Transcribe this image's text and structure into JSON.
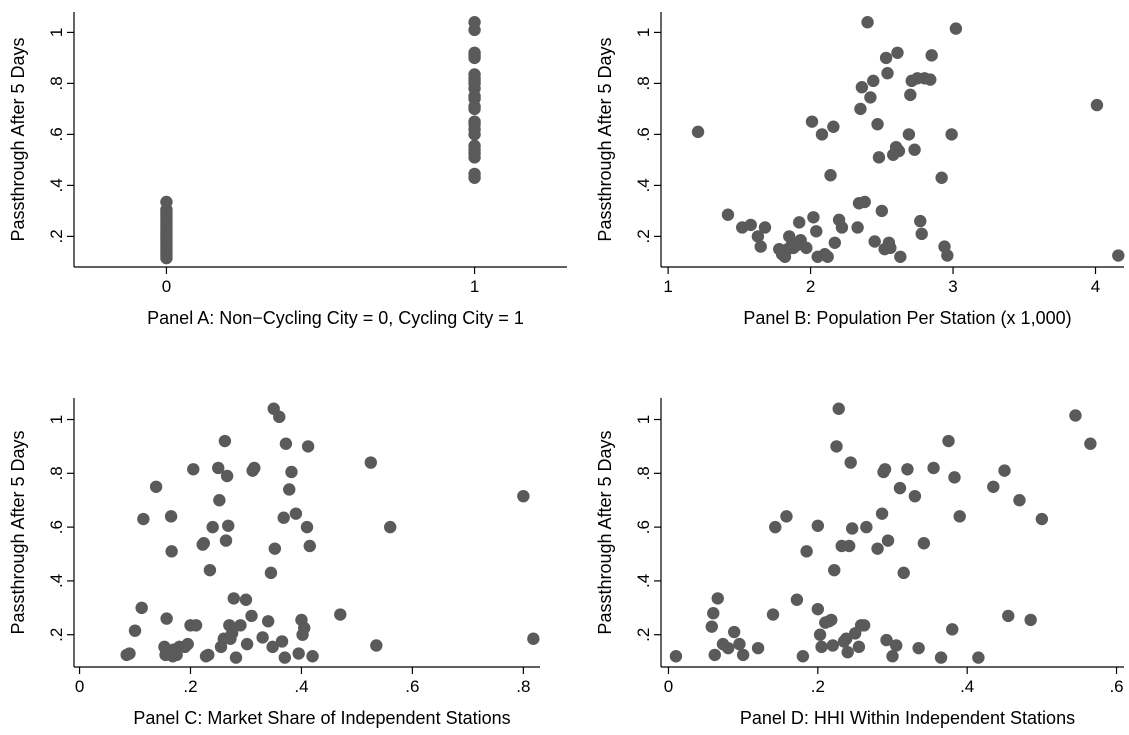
{
  "chart_data": [
    {
      "type": "scatter",
      "panel": "A",
      "xlabel": "Panel A: Non−Cycling City = 0, Cycling City = 1",
      "ylabel": "Passthrough After 5 Days",
      "xlim": [
        -0.3,
        1.3
      ],
      "ylim": [
        0.08,
        1.08
      ],
      "xticks": [
        0,
        1
      ],
      "xtick_labels": [
        "0",
        "1"
      ],
      "yticks": [
        0.2,
        0.4,
        0.6,
        0.8,
        1
      ],
      "ytick_labels": [
        ".2",
        ".4",
        ".6",
        ".8",
        "1"
      ],
      "grid": false,
      "marker_color": "#5a5a5a",
      "points": [
        [
          0,
          0.115
        ],
        [
          0,
          0.125
        ],
        [
          0,
          0.135
        ],
        [
          0,
          0.145
        ],
        [
          0,
          0.155
        ],
        [
          0,
          0.165
        ],
        [
          0,
          0.175
        ],
        [
          0,
          0.185
        ],
        [
          0,
          0.195
        ],
        [
          0,
          0.205
        ],
        [
          0,
          0.215
        ],
        [
          0,
          0.225
        ],
        [
          0,
          0.235
        ],
        [
          0,
          0.245
        ],
        [
          0,
          0.255
        ],
        [
          0,
          0.265
        ],
        [
          0,
          0.275
        ],
        [
          0,
          0.285
        ],
        [
          0,
          0.295
        ],
        [
          0,
          0.305
        ],
        [
          0,
          0.335
        ],
        [
          1,
          0.43
        ],
        [
          1,
          0.445
        ],
        [
          1,
          0.51
        ],
        [
          1,
          0.525
        ],
        [
          1,
          0.54
        ],
        [
          1,
          0.555
        ],
        [
          1,
          0.6
        ],
        [
          1,
          0.62
        ],
        [
          1,
          0.64
        ],
        [
          1,
          0.65
        ],
        [
          1,
          0.7
        ],
        [
          1,
          0.71
        ],
        [
          1,
          0.74
        ],
        [
          1,
          0.75
        ],
        [
          1,
          0.78
        ],
        [
          1,
          0.8
        ],
        [
          1,
          0.81
        ],
        [
          1,
          0.82
        ],
        [
          1,
          0.835
        ],
        [
          1,
          0.9
        ],
        [
          1,
          0.91
        ],
        [
          1,
          0.92
        ],
        [
          1,
          1.01
        ],
        [
          1,
          1.04
        ]
      ]
    },
    {
      "type": "scatter",
      "panel": "B",
      "xlabel": "Panel B: Population Per Station (x 1,000)",
      "ylabel": "Passthrough After 5 Days",
      "xlim": [
        0.95,
        4.2
      ],
      "ylim": [
        0.08,
        1.08
      ],
      "xticks": [
        1,
        2,
        3,
        4
      ],
      "xtick_labels": [
        "1",
        "2",
        "3",
        "4"
      ],
      "yticks": [
        0.2,
        0.4,
        0.6,
        0.8,
        1
      ],
      "ytick_labels": [
        ".2",
        ".4",
        ".6",
        ".8",
        "1"
      ],
      "grid": false,
      "marker_color": "#5a5a5a",
      "points": [
        [
          1.21,
          0.61
        ],
        [
          1.42,
          0.285
        ],
        [
          1.52,
          0.235
        ],
        [
          1.58,
          0.245
        ],
        [
          1.63,
          0.2
        ],
        [
          1.65,
          0.16
        ],
        [
          1.68,
          0.235
        ],
        [
          1.78,
          0.15
        ],
        [
          1.8,
          0.13
        ],
        [
          1.82,
          0.12
        ],
        [
          1.84,
          0.15
        ],
        [
          1.85,
          0.2
        ],
        [
          1.87,
          0.17
        ],
        [
          1.88,
          0.155
        ],
        [
          1.9,
          0.165
        ],
        [
          1.92,
          0.255
        ],
        [
          1.93,
          0.185
        ],
        [
          1.97,
          0.155
        ],
        [
          2.01,
          0.65
        ],
        [
          2.02,
          0.275
        ],
        [
          2.04,
          0.22
        ],
        [
          2.05,
          0.12
        ],
        [
          2.08,
          0.6
        ],
        [
          2.1,
          0.13
        ],
        [
          2.12,
          0.12
        ],
        [
          2.14,
          0.44
        ],
        [
          2.16,
          0.63
        ],
        [
          2.17,
          0.175
        ],
        [
          2.2,
          0.265
        ],
        [
          2.22,
          0.235
        ],
        [
          2.33,
          0.235
        ],
        [
          2.34,
          0.33
        ],
        [
          2.35,
          0.7
        ],
        [
          2.36,
          0.785
        ],
        [
          2.38,
          0.335
        ],
        [
          2.4,
          1.04
        ],
        [
          2.42,
          0.745
        ],
        [
          2.44,
          0.81
        ],
        [
          2.45,
          0.18
        ],
        [
          2.47,
          0.64
        ],
        [
          2.48,
          0.51
        ],
        [
          2.5,
          0.3
        ],
        [
          2.52,
          0.15
        ],
        [
          2.53,
          0.9
        ],
        [
          2.54,
          0.84
        ],
        [
          2.55,
          0.175
        ],
        [
          2.56,
          0.155
        ],
        [
          2.58,
          0.52
        ],
        [
          2.6,
          0.55
        ],
        [
          2.61,
          0.92
        ],
        [
          2.62,
          0.535
        ],
        [
          2.63,
          0.12
        ],
        [
          2.69,
          0.6
        ],
        [
          2.7,
          0.755
        ],
        [
          2.71,
          0.81
        ],
        [
          2.73,
          0.54
        ],
        [
          2.75,
          0.82
        ],
        [
          2.77,
          0.26
        ],
        [
          2.78,
          0.21
        ],
        [
          2.8,
          0.82
        ],
        [
          2.84,
          0.815
        ],
        [
          2.85,
          0.91
        ],
        [
          2.92,
          0.43
        ],
        [
          2.94,
          0.16
        ],
        [
          2.96,
          0.125
        ],
        [
          2.99,
          0.6
        ],
        [
          3.02,
          1.015
        ],
        [
          4.01,
          0.715
        ],
        [
          4.16,
          0.125
        ]
      ]
    },
    {
      "type": "scatter",
      "panel": "C",
      "xlabel": "Panel C: Market Share of Independent Stations",
      "ylabel": "Passthrough After 5 Days",
      "xlim": [
        -0.01,
        0.83
      ],
      "ylim": [
        0.08,
        1.08
      ],
      "xticks": [
        0,
        0.2,
        0.4,
        0.6,
        0.8
      ],
      "xtick_labels": [
        "0",
        ".2",
        ".4",
        ".6",
        ".8"
      ],
      "yticks": [
        0.2,
        0.4,
        0.6,
        0.8,
        1
      ],
      "ytick_labels": [
        ".2",
        ".4",
        ".6",
        ".8",
        "1"
      ],
      "grid": false,
      "marker_color": "#5a5a5a",
      "points": [
        [
          0.085,
          0.125
        ],
        [
          0.09,
          0.13
        ],
        [
          0.1,
          0.215
        ],
        [
          0.112,
          0.3
        ],
        [
          0.115,
          0.63
        ],
        [
          0.138,
          0.75
        ],
        [
          0.153,
          0.155
        ],
        [
          0.155,
          0.125
        ],
        [
          0.157,
          0.26
        ],
        [
          0.165,
          0.64
        ],
        [
          0.166,
          0.51
        ],
        [
          0.168,
          0.12
        ],
        [
          0.17,
          0.145
        ],
        [
          0.175,
          0.125
        ],
        [
          0.18,
          0.155
        ],
        [
          0.19,
          0.155
        ],
        [
          0.195,
          0.165
        ],
        [
          0.2,
          0.235
        ],
        [
          0.205,
          0.815
        ],
        [
          0.21,
          0.235
        ],
        [
          0.222,
          0.535
        ],
        [
          0.224,
          0.54
        ],
        [
          0.228,
          0.12
        ],
        [
          0.232,
          0.125
        ],
        [
          0.235,
          0.44
        ],
        [
          0.24,
          0.6
        ],
        [
          0.25,
          0.82
        ],
        [
          0.252,
          0.7
        ],
        [
          0.255,
          0.155
        ],
        [
          0.26,
          0.185
        ],
        [
          0.262,
          0.92
        ],
        [
          0.264,
          0.55
        ],
        [
          0.266,
          0.79
        ],
        [
          0.268,
          0.605
        ],
        [
          0.27,
          0.235
        ],
        [
          0.272,
          0.185
        ],
        [
          0.275,
          0.205
        ],
        [
          0.278,
          0.335
        ],
        [
          0.282,
          0.115
        ],
        [
          0.29,
          0.235
        ],
        [
          0.3,
          0.33
        ],
        [
          0.302,
          0.165
        ],
        [
          0.31,
          0.27
        ],
        [
          0.312,
          0.81
        ],
        [
          0.315,
          0.82
        ],
        [
          0.33,
          0.19
        ],
        [
          0.34,
          0.25
        ],
        [
          0.345,
          0.43
        ],
        [
          0.348,
          0.155
        ],
        [
          0.35,
          1.04
        ],
        [
          0.352,
          0.52
        ],
        [
          0.36,
          1.01
        ],
        [
          0.365,
          0.175
        ],
        [
          0.368,
          0.635
        ],
        [
          0.37,
          0.115
        ],
        [
          0.372,
          0.91
        ],
        [
          0.378,
          0.74
        ],
        [
          0.382,
          0.805
        ],
        [
          0.39,
          0.65
        ],
        [
          0.395,
          0.13
        ],
        [
          0.4,
          0.255
        ],
        [
          0.402,
          0.2
        ],
        [
          0.405,
          0.225
        ],
        [
          0.41,
          0.6
        ],
        [
          0.412,
          0.9
        ],
        [
          0.415,
          0.53
        ],
        [
          0.42,
          0.12
        ],
        [
          0.47,
          0.275
        ],
        [
          0.525,
          0.84
        ],
        [
          0.535,
          0.16
        ],
        [
          0.56,
          0.6
        ],
        [
          0.8,
          0.715
        ],
        [
          0.818,
          0.185
        ]
      ]
    },
    {
      "type": "scatter",
      "panel": "D",
      "xlabel": "Panel D: HHI Within Independent Stations",
      "ylabel": "Passthrough After 5 Days",
      "xlim": [
        -0.01,
        0.61
      ],
      "ylim": [
        0.08,
        1.08
      ],
      "xticks": [
        0,
        0.2,
        0.4,
        0.6
      ],
      "xtick_labels": [
        "0",
        ".2",
        ".4",
        ".6"
      ],
      "yticks": [
        0.2,
        0.4,
        0.6,
        0.8,
        1
      ],
      "ytick_labels": [
        ".2",
        ".4",
        ".6",
        ".8",
        "1"
      ],
      "grid": false,
      "marker_color": "#5a5a5a",
      "points": [
        [
          0.01,
          0.12
        ],
        [
          0.058,
          0.23
        ],
        [
          0.06,
          0.28
        ],
        [
          0.062,
          0.125
        ],
        [
          0.066,
          0.335
        ],
        [
          0.073,
          0.165
        ],
        [
          0.08,
          0.15
        ],
        [
          0.088,
          0.21
        ],
        [
          0.095,
          0.165
        ],
        [
          0.1,
          0.125
        ],
        [
          0.12,
          0.15
        ],
        [
          0.14,
          0.275
        ],
        [
          0.143,
          0.6
        ],
        [
          0.158,
          0.64
        ],
        [
          0.172,
          0.33
        ],
        [
          0.18,
          0.12
        ],
        [
          0.185,
          0.51
        ],
        [
          0.2,
          0.605
        ],
        [
          0.2,
          0.295
        ],
        [
          0.203,
          0.2
        ],
        [
          0.205,
          0.155
        ],
        [
          0.21,
          0.245
        ],
        [
          0.215,
          0.25
        ],
        [
          0.218,
          0.255
        ],
        [
          0.22,
          0.16
        ],
        [
          0.222,
          0.44
        ],
        [
          0.225,
          0.9
        ],
        [
          0.228,
          1.04
        ],
        [
          0.232,
          0.53
        ],
        [
          0.235,
          0.175
        ],
        [
          0.238,
          0.185
        ],
        [
          0.24,
          0.135
        ],
        [
          0.242,
          0.53
        ],
        [
          0.244,
          0.84
        ],
        [
          0.246,
          0.595
        ],
        [
          0.25,
          0.205
        ],
        [
          0.255,
          0.155
        ],
        [
          0.258,
          0.235
        ],
        [
          0.262,
          0.235
        ],
        [
          0.265,
          0.6
        ],
        [
          0.28,
          0.52
        ],
        [
          0.286,
          0.65
        ],
        [
          0.288,
          0.805
        ],
        [
          0.29,
          0.815
        ],
        [
          0.292,
          0.18
        ],
        [
          0.294,
          0.55
        ],
        [
          0.3,
          0.12
        ],
        [
          0.305,
          0.16
        ],
        [
          0.31,
          0.745
        ],
        [
          0.315,
          0.43
        ],
        [
          0.32,
          0.815
        ],
        [
          0.33,
          0.715
        ],
        [
          0.335,
          0.15
        ],
        [
          0.342,
          0.54
        ],
        [
          0.355,
          0.82
        ],
        [
          0.365,
          0.115
        ],
        [
          0.375,
          0.92
        ],
        [
          0.38,
          0.22
        ],
        [
          0.383,
          0.785
        ],
        [
          0.39,
          0.64
        ],
        [
          0.415,
          0.115
        ],
        [
          0.435,
          0.75
        ],
        [
          0.45,
          0.81
        ],
        [
          0.455,
          0.27
        ],
        [
          0.47,
          0.7
        ],
        [
          0.485,
          0.255
        ],
        [
          0.5,
          0.63
        ],
        [
          0.545,
          1.015
        ],
        [
          0.565,
          0.91
        ]
      ]
    }
  ]
}
